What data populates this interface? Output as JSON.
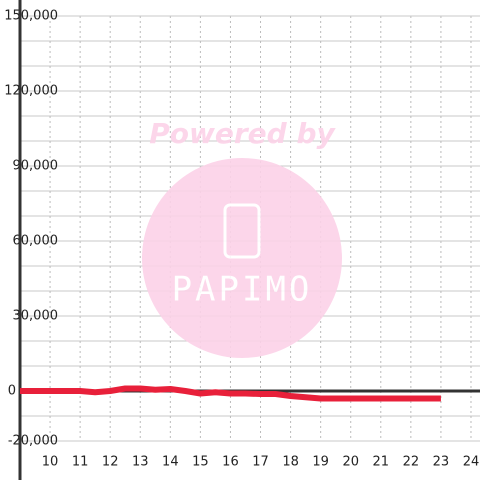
{
  "chart_data": {
    "type": "line",
    "x": [
      9,
      9.5,
      10,
      10.5,
      11,
      11.5,
      12,
      12.5,
      13,
      13.5,
      14,
      14.5,
      15,
      15.5,
      16,
      16.5,
      17,
      17.5,
      18,
      18.5,
      19,
      19.5,
      20,
      21,
      22,
      23
    ],
    "series": [
      {
        "color": "#e8203a",
        "values": [
          0,
          0,
          0,
          0,
          0,
          -500,
          0,
          1000,
          1000,
          500,
          800,
          0,
          -1000,
          -500,
          -1000,
          -1000,
          -1200,
          -1200,
          -2000,
          -2500,
          -3000,
          -3000,
          -3000,
          -3000,
          -3000,
          -3000
        ]
      }
    ],
    "xlim": [
      9,
      24.3
    ],
    "xticks": [
      10,
      11,
      12,
      13,
      14,
      15,
      16,
      17,
      18,
      19,
      20,
      21,
      22,
      23,
      24
    ],
    "ylim": [
      -20000,
      150000
    ],
    "yticks": [
      {
        "value": -20000,
        "label": "-20,000"
      },
      0,
      {
        "value": 30000,
        "label": "30,000"
      },
      {
        "value": 60000,
        "label": "60,000"
      },
      {
        "value": 90000,
        "label": "90,000"
      },
      {
        "value": 120000,
        "label": "120,000"
      },
      {
        "value": 150000,
        "label": "150,000"
      }
    ],
    "yminorticks": [
      -10000,
      10000,
      20000,
      40000,
      50000,
      70000,
      80000,
      100000,
      110000,
      130000,
      140000
    ],
    "grid": true,
    "watermark": {
      "top": "Powered by",
      "logo": "PAPIMO"
    }
  }
}
